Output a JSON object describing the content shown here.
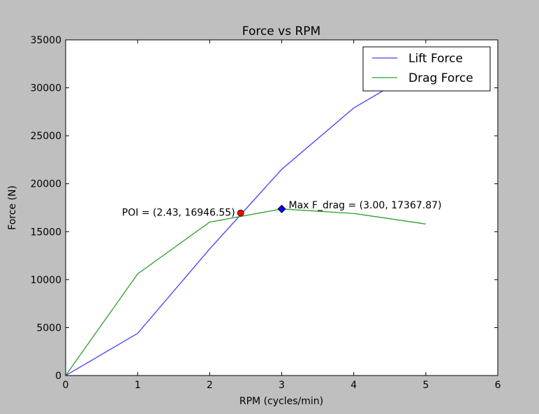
{
  "chart_data": {
    "type": "line",
    "title": "Force vs RPM",
    "xlabel": "RPM (cycles/min)",
    "ylabel": "Force (N)",
    "xlim": [
      0,
      6
    ],
    "ylim": [
      0,
      35000
    ],
    "xticks": [
      0,
      1,
      2,
      3,
      4,
      5,
      6
    ],
    "yticks": [
      0,
      5000,
      10000,
      15000,
      20000,
      25000,
      30000,
      35000
    ],
    "grid": false,
    "legend_position": "top-right",
    "series": [
      {
        "name": "Lift Force",
        "color": "#4040ff",
        "x": [
          0,
          1,
          2,
          3,
          4,
          5
        ],
        "y": [
          0,
          4400,
          13200,
          21500,
          27900,
          32300
        ]
      },
      {
        "name": "Drag Force",
        "color": "#2ca02c",
        "x": [
          0,
          1,
          2,
          3,
          4,
          5
        ],
        "y": [
          0,
          10600,
          16000,
          17367.87,
          16900,
          15800
        ]
      }
    ],
    "annotations": [
      {
        "name": "poi",
        "text": "POI = (2.43, 16946.55)",
        "x": 2.43,
        "y": 16946.55,
        "marker": "circle",
        "color": "#ff0000",
        "align": "left"
      },
      {
        "name": "max-drag",
        "text": "Max F_drag = (3.00, 17367.87)",
        "x": 3.0,
        "y": 17367.87,
        "marker": "diamond",
        "color": "#0000ff",
        "align": "right"
      }
    ]
  }
}
